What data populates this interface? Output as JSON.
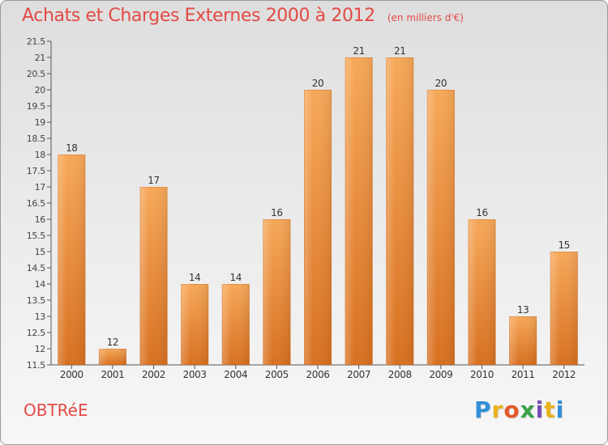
{
  "header": {
    "title": "Achats et Charges Externes 2000 à 2012",
    "subtitle": "(en milliers d'€)"
  },
  "footer": {
    "commune": "OBTRéE",
    "logo": {
      "letters": [
        "P",
        "r",
        "o",
        "x",
        "i",
        "t",
        "i"
      ],
      "colors": [
        "#2f8fd8",
        "#e8b21a",
        "#e35a2a",
        "#3aa14a",
        "#7a4bb3",
        "#e8b21a",
        "#2f8fd8"
      ]
    }
  },
  "colors": {
    "bar_light": "#f7a859",
    "bar_dark": "#d87020",
    "label": "#e34a45"
  },
  "chart_data": {
    "type": "bar",
    "categories": [
      "2000",
      "2001",
      "2002",
      "2003",
      "2004",
      "2005",
      "2006",
      "2007",
      "2008",
      "2009",
      "2010",
      "2011",
      "2012"
    ],
    "values": [
      18,
      12,
      17,
      14,
      14,
      16,
      20,
      21,
      21,
      20,
      16,
      13,
      15
    ],
    "data_labels": [
      "18",
      "12",
      "17",
      "14",
      "14",
      "16",
      "20",
      "21",
      "21",
      "20",
      "16",
      "13",
      "15"
    ],
    "ylim": [
      11.5,
      21.5
    ],
    "yticks": [
      "11.5",
      "12",
      "12.5",
      "13",
      "13.5",
      "14",
      "14.5",
      "15",
      "15.5",
      "16",
      "16.5",
      "17",
      "17.5",
      "18",
      "18.5",
      "19",
      "19.5",
      "20",
      "20.5",
      "21",
      "21.5"
    ],
    "grid": false,
    "legend": "none"
  }
}
